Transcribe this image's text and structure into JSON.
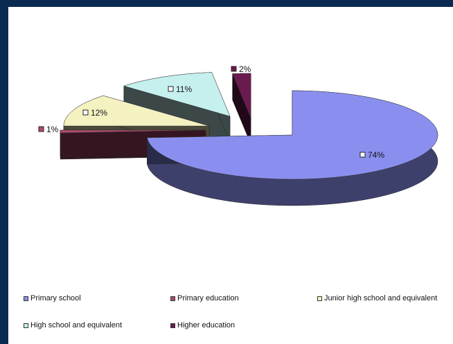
{
  "chart_data": {
    "type": "pie",
    "title": "",
    "legend_position": "bottom",
    "slices": [
      {
        "name": "Primary school",
        "value": 74,
        "label": "74%",
        "color": "#8a8fef"
      },
      {
        "name": "Primary education",
        "value": 1,
        "label": "1%",
        "color": "#b04a6c"
      },
      {
        "name": "Junior high school and equivalent",
        "value": 12,
        "label": "12%",
        "color": "#f5f2c2"
      },
      {
        "name": "High school and equivalent",
        "value": 11,
        "label": "11%",
        "color": "#c5f0ee"
      },
      {
        "name": "Higher education",
        "value": 2,
        "label": "2%",
        "color": "#6b1a4f"
      }
    ]
  }
}
